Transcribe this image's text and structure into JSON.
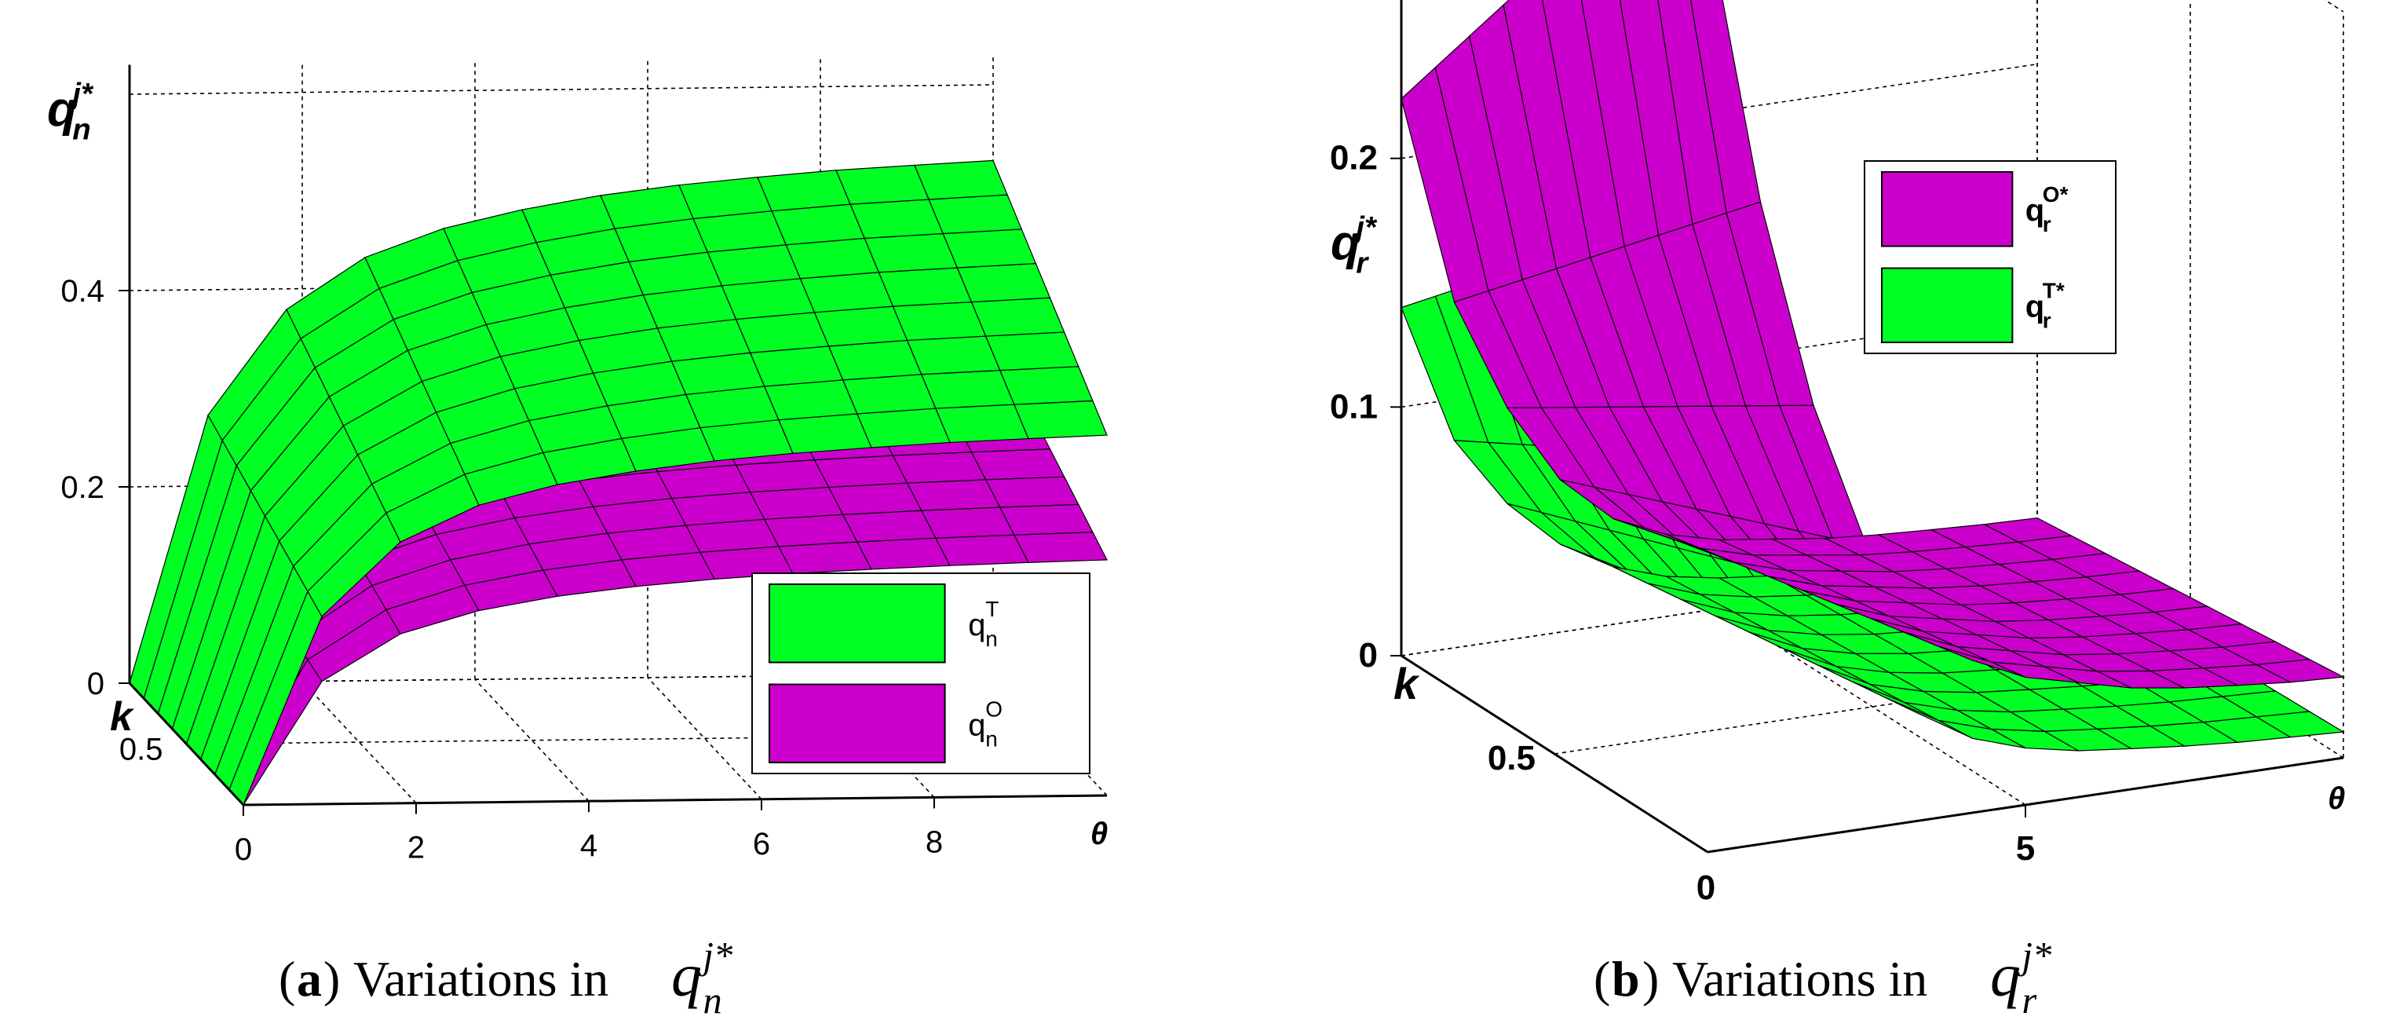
{
  "chart_data": [
    {
      "type": "surface3d",
      "panel_label": "a",
      "caption_prefix": "Variations in",
      "caption_math": {
        "base": "q",
        "sub": "n",
        "sup": "j*"
      },
      "zlabel": {
        "base": "q",
        "sub": "n",
        "sup": "j*"
      },
      "xlabel": "θ",
      "ylabel": "k",
      "x_ticks": [
        "0",
        "2",
        "4",
        "6",
        "8"
      ],
      "y_ticks": [
        "0.5"
      ],
      "z_ticks": [
        "0",
        "0.2",
        "0.4"
      ],
      "xlim": [
        0,
        10
      ],
      "ylim": [
        0,
        1
      ],
      "zlim": [
        0,
        0.6
      ],
      "legend_position": "bottom-right",
      "series": [
        {
          "name": "q_n^T",
          "legend_base": "q",
          "legend_sub": "n",
          "legend_sup": "T",
          "color": "#00ff22",
          "theta": [
            0.2,
            1.2,
            2.2,
            3.2,
            4.2,
            5.2,
            6.2,
            7.2,
            8.2,
            9.2,
            10
          ],
          "values": [
            0.0,
            0.26,
            0.34,
            0.38,
            0.4,
            0.415,
            0.425,
            0.432,
            0.438,
            0.442,
            0.445
          ]
        },
        {
          "name": "q_n^O",
          "legend_base": "q",
          "legend_sub": "n",
          "legend_sup": "O",
          "color": "#cc00cc",
          "theta": [
            0.2,
            1.2,
            2.2,
            3.2,
            4.2,
            5.2,
            6.2,
            7.2,
            8.2,
            9.2,
            10
          ],
          "values": [
            0.0,
            0.17,
            0.22,
            0.245,
            0.26,
            0.27,
            0.277,
            0.282,
            0.286,
            0.289,
            0.291
          ]
        }
      ]
    },
    {
      "type": "surface3d",
      "panel_label": "b",
      "caption_prefix": "Variations in",
      "caption_math": {
        "base": "q",
        "sub": "r",
        "sup": "j*"
      },
      "zlabel": {
        "base": "q",
        "sub": "r",
        "sup": "j*"
      },
      "xlabel": "θ",
      "ylabel": "k",
      "x_ticks": [
        "5"
      ],
      "y_ticks": [
        "0.5",
        "0"
      ],
      "z_ticks": [
        "0",
        "0.1",
        "0.2"
      ],
      "xlim": [
        0,
        10
      ],
      "ylim": [
        0,
        1
      ],
      "zlim": [
        0,
        0.3
      ],
      "legend_position": "top-right",
      "series": [
        {
          "name": "q_r^O*",
          "legend_base": "q",
          "legend_sub": "r",
          "legend_sup": "O*",
          "color": "#cc00cc",
          "theta": [
            0.2,
            1,
            2,
            3,
            4,
            5,
            6,
            7,
            8,
            9,
            10
          ],
          "values": [
            0.32,
            0.2,
            0.12,
            0.07,
            0.05,
            0.04,
            0.035,
            0.03,
            0.028,
            0.026,
            0.025
          ]
        },
        {
          "name": "q_r^T*",
          "legend_base": "q",
          "legend_sub": "r",
          "legend_sup": "T*",
          "color": "#00ff22",
          "theta": [
            0.2,
            1,
            2,
            3,
            4,
            5,
            6,
            7,
            8,
            9,
            10
          ],
          "values": [
            0.2,
            0.12,
            0.07,
            0.04,
            0.025,
            0.018,
            0.014,
            0.012,
            0.01,
            0.009,
            0.008
          ]
        }
      ]
    }
  ]
}
